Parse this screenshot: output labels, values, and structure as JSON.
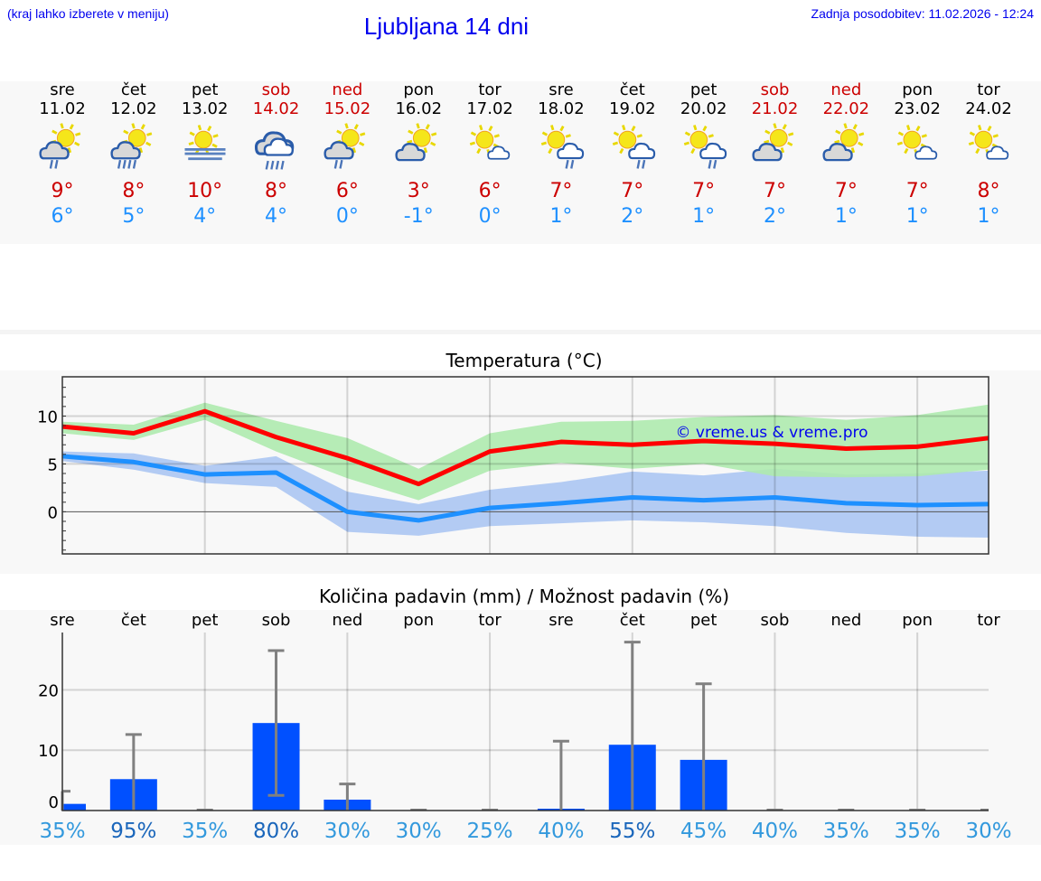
{
  "header": {
    "hint": "(kraj lahko izberete v meniju)",
    "title": "Ljubljana 14 dni",
    "updated": "Zadnja posodobitev: 11.02.2026 - 12:24"
  },
  "days": [
    {
      "name": "sre",
      "date": "11.02",
      "weekend": false,
      "icon": "partly-cloudy-light-rain",
      "max": "9°",
      "min": "6°"
    },
    {
      "name": "čet",
      "date": "12.02",
      "weekend": false,
      "icon": "partly-cloudy-rain",
      "max": "8°",
      "min": "5°"
    },
    {
      "name": "pet",
      "date": "13.02",
      "weekend": false,
      "icon": "sun-fog",
      "max": "10°",
      "min": "4°"
    },
    {
      "name": "sob",
      "date": "14.02",
      "weekend": true,
      "icon": "cloudy-rain",
      "max": "8°",
      "min": "4°"
    },
    {
      "name": "ned",
      "date": "15.02",
      "weekend": true,
      "icon": "partly-cloudy-light-rain",
      "max": "6°",
      "min": "0°"
    },
    {
      "name": "pon",
      "date": "16.02",
      "weekend": false,
      "icon": "partly-cloudy",
      "max": "3°",
      "min": "-1°"
    },
    {
      "name": "tor",
      "date": "17.02",
      "weekend": false,
      "icon": "sun-small-cloud",
      "max": "6°",
      "min": "0°"
    },
    {
      "name": "sre",
      "date": "18.02",
      "weekend": false,
      "icon": "sun-cloud-drizzle",
      "max": "7°",
      "min": "1°"
    },
    {
      "name": "čet",
      "date": "19.02",
      "weekend": false,
      "icon": "sun-cloud-drizzle",
      "max": "7°",
      "min": "2°"
    },
    {
      "name": "pet",
      "date": "20.02",
      "weekend": false,
      "icon": "sun-cloud-drizzle",
      "max": "7°",
      "min": "1°"
    },
    {
      "name": "sob",
      "date": "21.02",
      "weekend": true,
      "icon": "partly-cloudy",
      "max": "7°",
      "min": "2°"
    },
    {
      "name": "ned",
      "date": "22.02",
      "weekend": true,
      "icon": "partly-cloudy",
      "max": "7°",
      "min": "1°"
    },
    {
      "name": "pon",
      "date": "23.02",
      "weekend": false,
      "icon": "sun-small-cloud",
      "max": "7°",
      "min": "1°"
    },
    {
      "name": "tor",
      "date": "24.02",
      "weekend": false,
      "icon": "sun-small-cloud",
      "max": "8°",
      "min": "1°"
    }
  ],
  "colors": {
    "max": "#ff0000",
    "min": "#1e90ff",
    "max_band": "#aeeaae",
    "min_band": "#afc8f2",
    "bar": "#0050ff",
    "errbar": "#808080",
    "weekend": "#cc0000",
    "watermark": "#0000ee"
  },
  "chart_data": [
    {
      "type": "line",
      "title": "Temperatura (°C)",
      "watermark": "© vreme.us & vreme.pro",
      "ylim": [
        -4.4,
        14.1
      ],
      "yticks": [
        "0",
        "5",
        "10"
      ],
      "grid": true,
      "series": [
        {
          "values": [
            8.9,
            8.2,
            10.5,
            7.8,
            5.6,
            2.9,
            6.3,
            7.3,
            7.0,
            7.4,
            7.1,
            6.6,
            6.8,
            7.7
          ],
          "band_upper": [
            9.4,
            9.1,
            11.4,
            9.5,
            7.7,
            4.5,
            8.2,
            9.4,
            9.5,
            9.9,
            10.1,
            9.6,
            10.1,
            11.2
          ],
          "band_lower": [
            8.2,
            7.5,
            9.6,
            6.3,
            3.5,
            1.2,
            4.3,
            5.1,
            4.5,
            5.0,
            3.7,
            3.6,
            3.7,
            4.4
          ]
        },
        {
          "values": [
            5.8,
            5.2,
            3.9,
            4.1,
            0.0,
            -0.9,
            0.4,
            0.9,
            1.5,
            1.2,
            1.5,
            0.9,
            0.7,
            0.8
          ],
          "band_upper": [
            6.3,
            6.1,
            4.8,
            5.8,
            2.1,
            0.8,
            2.3,
            3.1,
            4.2,
            3.8,
            4.5,
            3.9,
            4.0,
            4.3
          ],
          "band_lower": [
            5.3,
            4.4,
            3.0,
            2.6,
            -2.1,
            -2.5,
            -1.5,
            -1.2,
            -0.9,
            -1.1,
            -1.5,
            -2.2,
            -2.6,
            -2.7
          ]
        }
      ]
    },
    {
      "type": "bar",
      "title": "Količina padavin (mm) / Možnost padavin (%)",
      "categories": [
        "sre",
        "čet",
        "pet",
        "sob",
        "ned",
        "pon",
        "tor",
        "sre",
        "čet",
        "pet",
        "sob",
        "ned",
        "pon",
        "tor"
      ],
      "ylim": [
        0,
        29.5
      ],
      "yticks": [
        "0",
        "10",
        "20"
      ],
      "grid": true,
      "values": [
        1.1,
        5.2,
        0,
        14.5,
        1.8,
        0,
        0,
        0.3,
        10.9,
        8.4,
        0,
        0,
        0,
        0
      ],
      "err_low": [
        0,
        0,
        0,
        2.5,
        0,
        0,
        0,
        0,
        0,
        0,
        0,
        0,
        0,
        0
      ],
      "err_high": [
        3.2,
        12.6,
        0,
        26.5,
        4.4,
        0,
        0,
        11.5,
        27.9,
        21.0,
        0,
        0,
        0,
        0
      ],
      "probability": [
        "35%",
        "95%",
        "35%",
        "80%",
        "30%",
        "30%",
        "25%",
        "40%",
        "55%",
        "45%",
        "40%",
        "35%",
        "35%",
        "30%"
      ],
      "probability_high": [
        false,
        true,
        false,
        true,
        false,
        false,
        false,
        false,
        true,
        false,
        false,
        false,
        false,
        false
      ]
    }
  ]
}
